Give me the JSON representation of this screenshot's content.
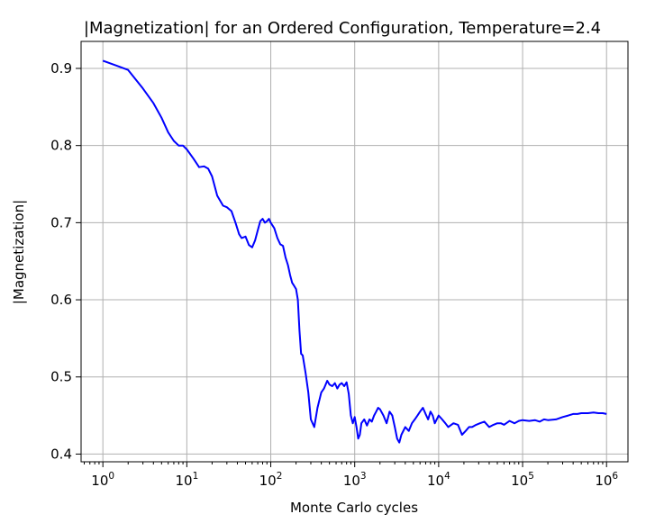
{
  "chart_data": {
    "type": "line",
    "title": "|Magnetization| for an Ordered Configuration, Temperature=2.4",
    "xlabel": "Monte Carlo cycles",
    "ylabel": "|Magnetization|",
    "xscale": "log",
    "xlim": [
      0.55,
      1800000
    ],
    "ylim": [
      0.39,
      0.935
    ],
    "grid": true,
    "xticks": [
      {
        "base": "10",
        "exp": "0",
        "value": 1
      },
      {
        "base": "10",
        "exp": "1",
        "value": 10
      },
      {
        "base": "10",
        "exp": "2",
        "value": 100
      },
      {
        "base": "10",
        "exp": "3",
        "value": 1000
      },
      {
        "base": "10",
        "exp": "4",
        "value": 10000
      },
      {
        "base": "10",
        "exp": "5",
        "value": 100000
      },
      {
        "base": "10",
        "exp": "6",
        "value": 1000000
      }
    ],
    "yticks": [
      {
        "label": "0.4",
        "value": 0.4
      },
      {
        "label": "0.5",
        "value": 0.5
      },
      {
        "label": "0.6",
        "value": 0.6
      },
      {
        "label": "0.7",
        "value": 0.7
      },
      {
        "label": "0.8",
        "value": 0.8
      },
      {
        "label": "0.9",
        "value": 0.9
      }
    ],
    "series": [
      {
        "color": "#0000ff",
        "x": [
          1,
          2,
          3,
          4,
          5,
          6,
          7,
          8,
          9,
          10,
          12,
          14,
          16,
          18,
          20,
          23,
          27,
          30,
          34,
          38,
          42,
          45,
          50,
          55,
          60,
          65,
          70,
          75,
          80,
          85,
          90,
          95,
          100,
          110,
          120,
          130,
          140,
          150,
          160,
          170,
          180,
          190,
          200,
          210,
          220,
          230,
          240,
          260,
          280,
          300,
          330,
          360,
          400,
          430,
          470,
          500,
          540,
          580,
          620,
          660,
          700,
          750,
          800,
          850,
          900,
          950,
          1000,
          1050,
          1100,
          1150,
          1200,
          1300,
          1400,
          1500,
          1600,
          1700,
          1800,
          1900,
          2000,
          2200,
          2400,
          2600,
          2800,
          3000,
          3200,
          3400,
          3600,
          4000,
          4400,
          4800,
          5200,
          5600,
          6000,
          6500,
          7000,
          7500,
          8000,
          8500,
          9000,
          10000,
          11000,
          12000,
          13000,
          15000,
          17000,
          19000,
          21000,
          23000,
          25000,
          28000,
          31000,
          35000,
          40000,
          45000,
          50000,
          55000,
          60000,
          70000,
          80000,
          90000,
          100000,
          120000,
          140000,
          160000,
          180000,
          200000,
          250000,
          300000,
          350000,
          400000,
          450000,
          500000,
          600000,
          700000,
          800000,
          900000,
          1000000
        ],
        "y": [
          0.91,
          0.898,
          0.874,
          0.855,
          0.836,
          0.817,
          0.806,
          0.8,
          0.8,
          0.795,
          0.783,
          0.772,
          0.773,
          0.77,
          0.76,
          0.735,
          0.722,
          0.72,
          0.715,
          0.7,
          0.685,
          0.68,
          0.682,
          0.671,
          0.668,
          0.677,
          0.69,
          0.702,
          0.705,
          0.7,
          0.702,
          0.705,
          0.7,
          0.693,
          0.68,
          0.672,
          0.67,
          0.655,
          0.645,
          0.632,
          0.622,
          0.618,
          0.614,
          0.6,
          0.56,
          0.53,
          0.528,
          0.505,
          0.48,
          0.445,
          0.435,
          0.46,
          0.48,
          0.485,
          0.495,
          0.49,
          0.488,
          0.492,
          0.485,
          0.49,
          0.492,
          0.488,
          0.493,
          0.478,
          0.45,
          0.44,
          0.448,
          0.435,
          0.42,
          0.425,
          0.44,
          0.445,
          0.437,
          0.445,
          0.442,
          0.45,
          0.455,
          0.46,
          0.458,
          0.45,
          0.44,
          0.455,
          0.45,
          0.435,
          0.42,
          0.415,
          0.425,
          0.435,
          0.43,
          0.44,
          0.445,
          0.45,
          0.455,
          0.46,
          0.452,
          0.445,
          0.455,
          0.45,
          0.44,
          0.45,
          0.445,
          0.44,
          0.435,
          0.44,
          0.438,
          0.425,
          0.43,
          0.435,
          0.435,
          0.438,
          0.44,
          0.442,
          0.435,
          0.438,
          0.44,
          0.44,
          0.438,
          0.443,
          0.44,
          0.443,
          0.444,
          0.443,
          0.444,
          0.442,
          0.445,
          0.444,
          0.445,
          0.448,
          0.45,
          0.452,
          0.452,
          0.453,
          0.453,
          0.454,
          0.453,
          0.453,
          0.452
        ]
      }
    ]
  }
}
